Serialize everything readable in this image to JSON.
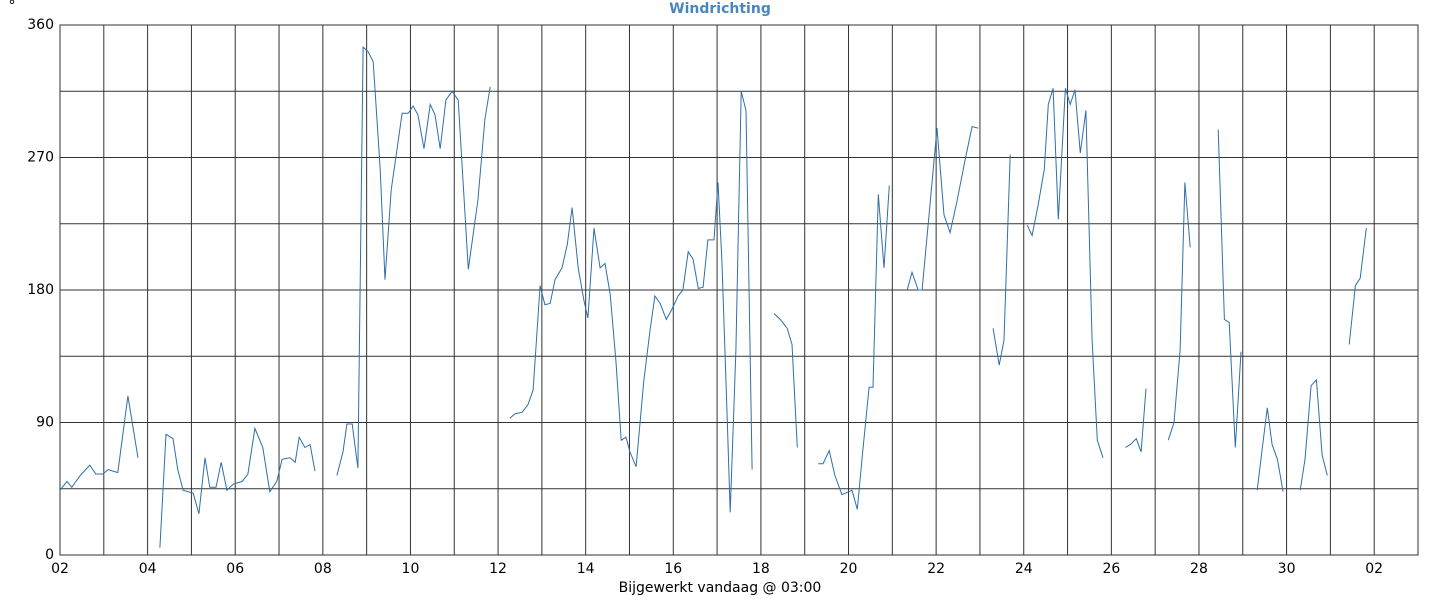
{
  "chart_data": {
    "type": "line",
    "title": "Windrichting",
    "y_unit": "°",
    "xlabel": "Bijgewerkt vandaag @ 03:00",
    "xlim": [
      0,
      31
    ],
    "ylim": [
      0,
      360
    ],
    "xticks": [
      {
        "value": 0,
        "label": "02"
      },
      {
        "value": 2,
        "label": "04"
      },
      {
        "value": 4,
        "label": "06"
      },
      {
        "value": 6,
        "label": "08"
      },
      {
        "value": 8,
        "label": "10"
      },
      {
        "value": 10,
        "label": "12"
      },
      {
        "value": 12,
        "label": "14"
      },
      {
        "value": 14,
        "label": "16"
      },
      {
        "value": 16,
        "label": "18"
      },
      {
        "value": 18,
        "label": "20"
      },
      {
        "value": 20,
        "label": "22"
      },
      {
        "value": 22,
        "label": "24"
      },
      {
        "value": 24,
        "label": "26"
      },
      {
        "value": 26,
        "label": "28"
      },
      {
        "value": 28,
        "label": "30"
      },
      {
        "value": 30,
        "label": "02"
      }
    ],
    "x_minor_ticks": [
      1,
      3,
      5,
      7,
      9,
      11,
      13,
      15,
      17,
      19,
      21,
      23,
      25,
      27,
      29,
      31
    ],
    "yticks": [
      0,
      90,
      180,
      270,
      360
    ],
    "y_minor_ticks": [
      45,
      135,
      225,
      315
    ],
    "grid": true,
    "series": [
      {
        "color": "#2f6fa8",
        "x": [
          0,
          0.16,
          0.27,
          0.46,
          0.68,
          0.82,
          0.98,
          1.1,
          1.32,
          1.55,
          1.78,
          null,
          2.28,
          2.42,
          2.58,
          2.69,
          2.81,
          3.04,
          3.17,
          3.31,
          3.42,
          3.56,
          3.68,
          3.81,
          3.95,
          4.16,
          4.29,
          4.45,
          4.63,
          4.79,
          4.95,
          5.07,
          5.25,
          5.37,
          5.46,
          5.59,
          5.71,
          5.82,
          null,
          6.32,
          6.46,
          6.55,
          6.67,
          6.8,
          6.92,
          7.03,
          7.15,
          7.31,
          7.42,
          7.56,
          7.69,
          7.81,
          7.95,
          8.06,
          8.17,
          8.31,
          8.45,
          8.56,
          8.68,
          8.81,
          8.95,
          9.09,
          9.32,
          9.54,
          9.7,
          9.82,
          null,
          10.27,
          10.39,
          10.55,
          10.68,
          10.8,
          10.96,
          11.07,
          11.19,
          11.3,
          11.46,
          11.58,
          11.69,
          11.83,
          11.96,
          12.05,
          12.19,
          12.33,
          12.44,
          12.56,
          12.69,
          12.81,
          12.92,
          13.01,
          13.15,
          13.33,
          13.47,
          13.58,
          13.7,
          13.84,
          13.97,
          14.11,
          14.22,
          14.34,
          14.45,
          14.57,
          14.68,
          14.79,
          14.93,
          15.02,
          15.11,
          15.23,
          15.3,
          15.43,
          15.55,
          15.66,
          15.8,
          null,
          16.3,
          16.44,
          16.6,
          16.71,
          16.83,
          null,
          17.31,
          17.42,
          17.56,
          17.69,
          17.85,
          18.01,
          18.08,
          18.2,
          18.31,
          18.47,
          18.56,
          18.68,
          18.81,
          18.93,
          null,
          19.34,
          19.45,
          19.59,
          19.68,
          19.86,
          20.02,
          20.18,
          20.32,
          20.48,
          20.66,
          20.82,
          20.96,
          null,
          21.3,
          21.44,
          21.55,
          21.69,
          null,
          22.08,
          22.19,
          22.33,
          22.47,
          22.56,
          22.67,
          22.79,
          22.95,
          23.06,
          23.17,
          23.29,
          23.42,
          23.56,
          23.68,
          23.81,
          null,
          24.32,
          24.43,
          24.57,
          24.68,
          24.79,
          null,
          25.3,
          25.43,
          25.57,
          25.68,
          25.8,
          null,
          26.44,
          26.58,
          26.69,
          26.83,
          26.96,
          null,
          27.33,
          27.44,
          27.56,
          27.67,
          27.79,
          27.92,
          null,
          28.31,
          28.42,
          28.56,
          28.68,
          28.81,
          28.93,
          null,
          29.43,
          29.57,
          29.68,
          29.82
        ],
        "values": [
          44,
          50,
          46,
          54,
          61,
          55,
          55,
          58,
          56,
          108,
          66,
          null,
          5,
          82,
          79,
          58,
          44,
          42,
          28,
          66,
          46,
          46,
          63,
          44,
          48,
          50,
          55,
          86,
          73,
          43,
          50,
          65,
          66,
          63,
          80,
          73,
          75,
          57,
          null,
          54,
          70,
          89,
          89,
          59,
          345,
          342,
          335,
          262,
          187,
          248,
          275,
          300,
          300,
          305,
          299,
          276,
          306,
          299,
          276,
          309,
          315,
          309,
          194,
          241,
          296,
          318,
          null,
          93,
          96,
          97,
          102,
          112,
          183,
          170,
          171,
          187,
          195,
          211,
          236,
          195,
          173,
          161,
          222,
          195,
          198,
          177,
          132,
          78,
          80,
          70,
          60,
          119,
          153,
          176,
          171,
          160,
          167,
          176,
          180,
          206,
          201,
          181,
          182,
          214,
          214,
          253,
          200,
          93,
          29,
          139,
          315,
          302,
          58,
          null,
          164,
          160,
          154,
          143,
          73,
          null,
          62,
          62,
          71,
          54,
          41,
          43,
          44,
          31,
          66,
          114,
          114,
          245,
          195,
          251,
          null,
          180,
          192,
          180,
          180,
          238,
          290,
          231,
          219,
          241,
          268,
          291,
          290,
          null,
          154,
          129,
          146,
          272,
          null,
          224,
          217,
          238,
          262,
          306,
          317,
          228,
          317,
          306,
          316,
          273,
          302,
          146,
          78,
          66,
          null,
          73,
          75,
          79,
          70,
          113,
          null,
          78,
          90,
          139,
          253,
          209,
          null,
          289,
          160,
          158,
          73,
          138,
          null,
          44,
          71,
          100,
          75,
          65,
          43,
          null,
          44,
          65,
          115,
          119,
          68,
          54,
          null,
          143,
          183,
          188,
          222
        ]
      }
    ]
  }
}
